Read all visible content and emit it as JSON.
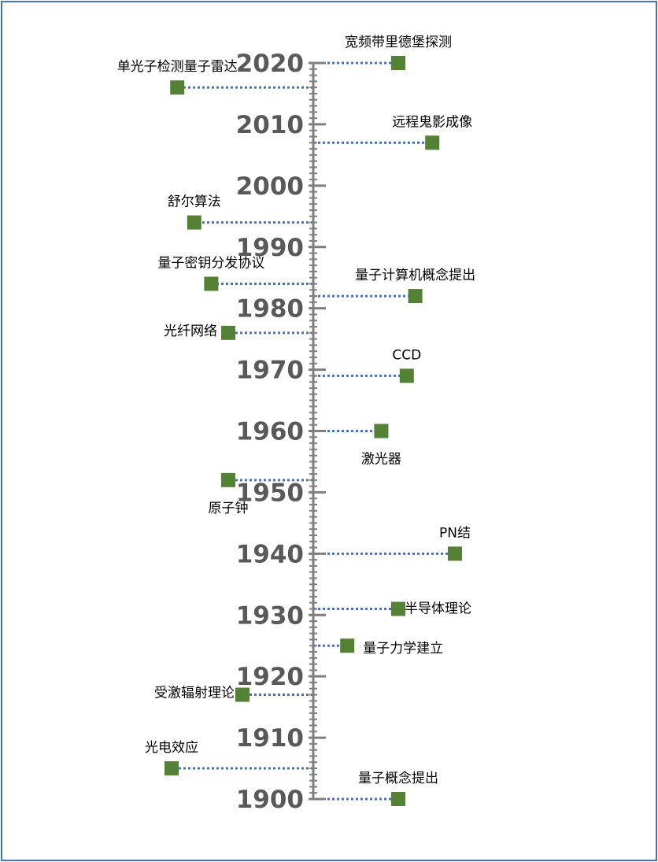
{
  "chart_data": {
    "type": "scatter",
    "title": "",
    "axis": {
      "min": 1900,
      "max": 2020,
      "major_step": 10,
      "minor_step": 1
    },
    "years": [
      "1900",
      "1910",
      "1920",
      "1930",
      "1940",
      "1950",
      "1960",
      "1970",
      "1980",
      "1990",
      "2000",
      "2010",
      "2020"
    ],
    "colors": {
      "axis": "#7F7F7F",
      "connector": "#4472C4",
      "marker": "#548235",
      "border": "#4472C4"
    },
    "events": [
      {
        "label": "量子概念提出",
        "year": 1900,
        "side": "right",
        "offset": 3
      },
      {
        "label": "光电效应",
        "year": 1905,
        "side": "left",
        "offset": -5
      },
      {
        "label": "受激辐射理论",
        "year": 1917,
        "side": "left",
        "offset": -2.5
      },
      {
        "label": "量子力学建立",
        "year": 1925,
        "side": "right",
        "offset": 1.2
      },
      {
        "label": "半导体理论",
        "year": 1931,
        "side": "right",
        "offset": 3
      },
      {
        "label": "PN结",
        "year": 1940,
        "side": "right",
        "offset": 5
      },
      {
        "label": "原子钟",
        "year": 1952,
        "side": "left",
        "offset": -3
      },
      {
        "label": "激光器",
        "year": 1960,
        "side": "right",
        "offset": 2.4
      },
      {
        "label": "CCD",
        "year": 1969,
        "side": "right",
        "offset": 3.3
      },
      {
        "label": "光纤网络",
        "year": 1976,
        "side": "left",
        "offset": -3
      },
      {
        "label": "量子计算机概念提出",
        "year": 1982,
        "side": "right",
        "offset": 3.6
      },
      {
        "label": "量子密钥分发协议",
        "year": 1984,
        "side": "left",
        "offset": -3.6
      },
      {
        "label": "舒尔算法",
        "year": 1994,
        "side": "left",
        "offset": -4.2
      },
      {
        "label": "远程鬼影成像",
        "year": 2007,
        "side": "right",
        "offset": 4.2
      },
      {
        "label": "单光子检测量子雷达",
        "year": 2016,
        "side": "left",
        "offset": -4.8
      },
      {
        "label": "宽频带里德堡探测",
        "year": 2020,
        "side": "right",
        "offset": 3
      }
    ]
  }
}
